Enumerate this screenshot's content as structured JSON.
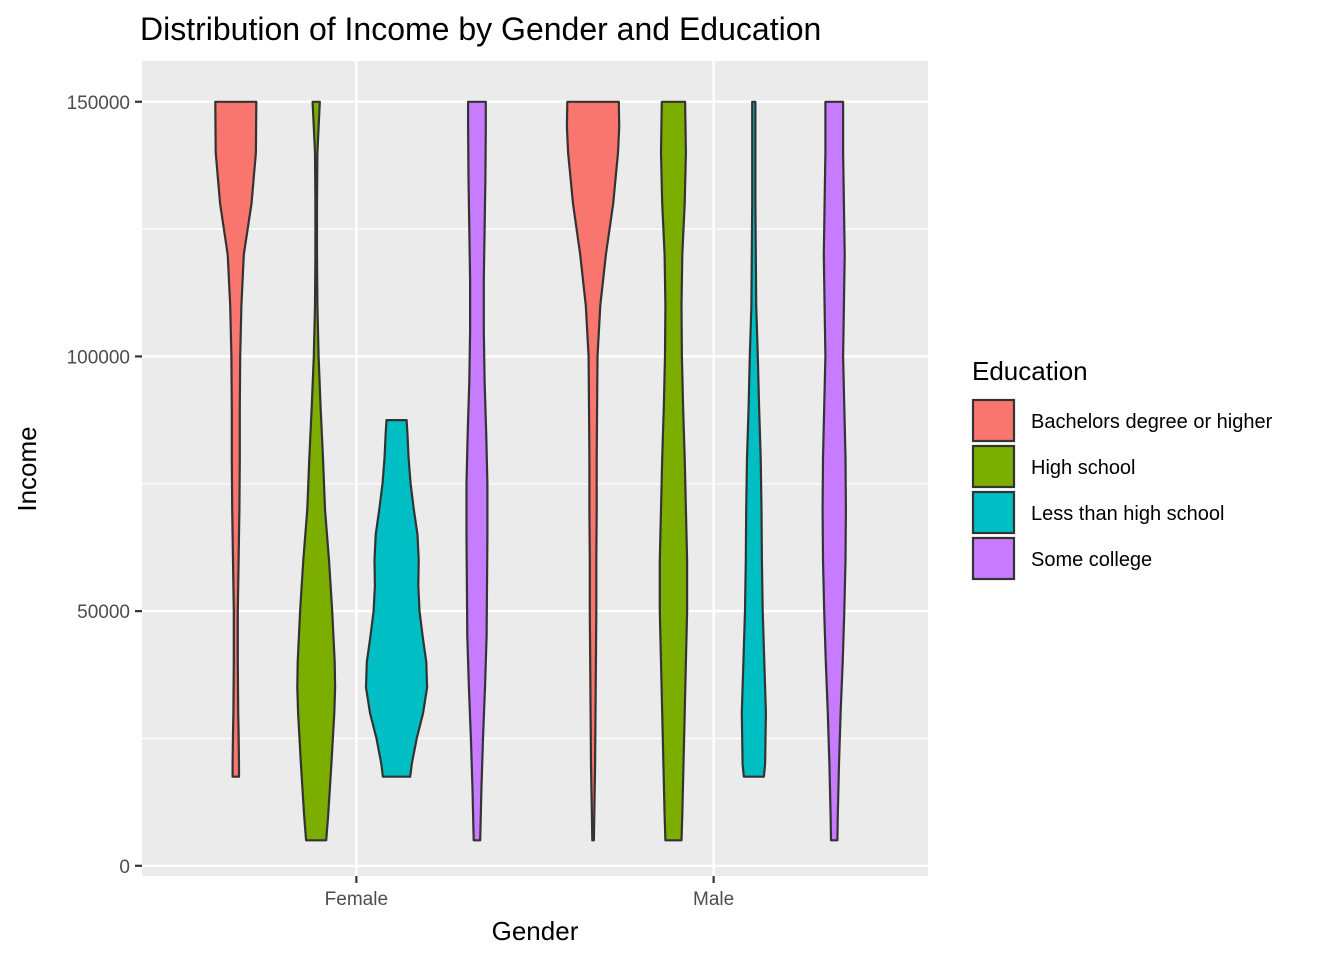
{
  "chart_data": {
    "type": "violin",
    "title": "Distribution of Income by Gender and Education",
    "xlabel": "Gender",
    "ylabel": "Income",
    "categories": [
      "Female",
      "Male"
    ],
    "ylim": [
      -2000,
      158000
    ],
    "yticks": [
      0,
      50000,
      100000,
      150000
    ],
    "ytick_labels": [
      "0",
      "50000",
      "100000",
      "150000"
    ],
    "grid": true,
    "legend": {
      "title": "Education",
      "position": "right",
      "entries": [
        {
          "label": "Bachelors degree or higher",
          "color": "#F8766D"
        },
        {
          "label": "High school",
          "color": "#7CAE00"
        },
        {
          "label": "Less than high school",
          "color": "#00BFC4"
        },
        {
          "label": "Some college",
          "color": "#C77CFF"
        }
      ]
    },
    "series": [
      {
        "name": "Bachelors degree or higher",
        "color": "#F8766D",
        "groups": [
          {
            "category": "Female",
            "min": 17500,
            "max": 150000,
            "density": [
              [
                17500,
                0.08
              ],
              [
                20000,
                0.08
              ],
              [
                26000,
                0.07
              ],
              [
                30000,
                0.06
              ],
              [
                40000,
                0.05
              ],
              [
                50000,
                0.05
              ],
              [
                60000,
                0.07
              ],
              [
                70000,
                0.09
              ],
              [
                80000,
                0.1
              ],
              [
                90000,
                0.1
              ],
              [
                100000,
                0.11
              ],
              [
                110000,
                0.14
              ],
              [
                120000,
                0.2
              ],
              [
                130000,
                0.39
              ],
              [
                140000,
                0.5
              ],
              [
                150000,
                0.51
              ]
            ]
          },
          {
            "category": "Male",
            "min": 5000,
            "max": 150000,
            "density": [
              [
                5000,
                0.02
              ],
              [
                10000,
                0.03
              ],
              [
                20000,
                0.05
              ],
              [
                30000,
                0.06
              ],
              [
                40000,
                0.07
              ],
              [
                50000,
                0.08
              ],
              [
                60000,
                0.08
              ],
              [
                70000,
                0.09
              ],
              [
                80000,
                0.09
              ],
              [
                90000,
                0.1
              ],
              [
                100000,
                0.11
              ],
              [
                110000,
                0.18
              ],
              [
                120000,
                0.32
              ],
              [
                130000,
                0.5
              ],
              [
                140000,
                0.62
              ],
              [
                145000,
                0.65
              ],
              [
                150000,
                0.64
              ]
            ]
          }
        ]
      },
      {
        "name": "High school",
        "color": "#7CAE00",
        "groups": [
          {
            "category": "Female",
            "min": 5000,
            "max": 150000,
            "density": [
              [
                5000,
                0.25
              ],
              [
                10000,
                0.3
              ],
              [
                20000,
                0.38
              ],
              [
                30000,
                0.45
              ],
              [
                35000,
                0.47
              ],
              [
                40000,
                0.46
              ],
              [
                50000,
                0.4
              ],
              [
                60000,
                0.32
              ],
              [
                70000,
                0.22
              ],
              [
                80000,
                0.17
              ],
              [
                90000,
                0.11
              ],
              [
                100000,
                0.06
              ],
              [
                110000,
                0.03
              ],
              [
                120000,
                0.02
              ],
              [
                130000,
                0.02
              ],
              [
                140000,
                0.03
              ],
              [
                150000,
                0.09
              ]
            ]
          },
          {
            "category": "Male",
            "min": 5000,
            "max": 150000,
            "density": [
              [
                5000,
                0.2
              ],
              [
                10000,
                0.22
              ],
              [
                20000,
                0.25
              ],
              [
                30000,
                0.28
              ],
              [
                40000,
                0.31
              ],
              [
                50000,
                0.34
              ],
              [
                60000,
                0.34
              ],
              [
                70000,
                0.31
              ],
              [
                80000,
                0.28
              ],
              [
                90000,
                0.24
              ],
              [
                100000,
                0.21
              ],
              [
                110000,
                0.2
              ],
              [
                120000,
                0.22
              ],
              [
                130000,
                0.28
              ],
              [
                140000,
                0.31
              ],
              [
                150000,
                0.29
              ]
            ]
          }
        ]
      },
      {
        "name": "Less than high school",
        "color": "#00BFC4",
        "groups": [
          {
            "category": "Female",
            "min": 17500,
            "max": 87500,
            "density": [
              [
                17500,
                0.34
              ],
              [
                20000,
                0.38
              ],
              [
                25000,
                0.5
              ],
              [
                30000,
                0.66
              ],
              [
                35000,
                0.76
              ],
              [
                40000,
                0.74
              ],
              [
                45000,
                0.65
              ],
              [
                50000,
                0.57
              ],
              [
                55000,
                0.54
              ],
              [
                60000,
                0.55
              ],
              [
                65000,
                0.52
              ],
              [
                70000,
                0.43
              ],
              [
                75000,
                0.35
              ],
              [
                80000,
                0.3
              ],
              [
                85000,
                0.27
              ],
              [
                87500,
                0.25
              ]
            ]
          },
          {
            "category": "Male",
            "min": 17500,
            "max": 150000,
            "density": [
              [
                17500,
                0.25
              ],
              [
                20000,
                0.28
              ],
              [
                30000,
                0.3
              ],
              [
                40000,
                0.26
              ],
              [
                50000,
                0.22
              ],
              [
                60000,
                0.2
              ],
              [
                70000,
                0.19
              ],
              [
                80000,
                0.17
              ],
              [
                90000,
                0.13
              ],
              [
                100000,
                0.1
              ],
              [
                110000,
                0.06
              ],
              [
                120000,
                0.05
              ],
              [
                130000,
                0.04
              ],
              [
                140000,
                0.04
              ],
              [
                150000,
                0.04
              ]
            ]
          }
        ]
      },
      {
        "name": "Some college",
        "color": "#C77CFF",
        "groups": [
          {
            "category": "Female",
            "min": 5000,
            "max": 150000,
            "density": [
              [
                5000,
                0.08
              ],
              [
                15000,
                0.11
              ],
              [
                25000,
                0.15
              ],
              [
                35000,
                0.2
              ],
              [
                45000,
                0.24
              ],
              [
                55000,
                0.25
              ],
              [
                65000,
                0.26
              ],
              [
                75000,
                0.26
              ],
              [
                85000,
                0.23
              ],
              [
                95000,
                0.19
              ],
              [
                105000,
                0.17
              ],
              [
                115000,
                0.17
              ],
              [
                125000,
                0.19
              ],
              [
                135000,
                0.21
              ],
              [
                145000,
                0.22
              ],
              [
                150000,
                0.22
              ]
            ]
          },
          {
            "category": "Male",
            "min": 5000,
            "max": 150000,
            "density": [
              [
                5000,
                0.08
              ],
              [
                10000,
                0.09
              ],
              [
                20000,
                0.12
              ],
              [
                30000,
                0.16
              ],
              [
                40000,
                0.21
              ],
              [
                50000,
                0.25
              ],
              [
                60000,
                0.28
              ],
              [
                70000,
                0.29
              ],
              [
                80000,
                0.28
              ],
              [
                90000,
                0.25
              ],
              [
                100000,
                0.22
              ],
              [
                110000,
                0.24
              ],
              [
                120000,
                0.26
              ],
              [
                130000,
                0.24
              ],
              [
                140000,
                0.22
              ],
              [
                150000,
                0.22
              ]
            ]
          }
        ]
      }
    ]
  }
}
